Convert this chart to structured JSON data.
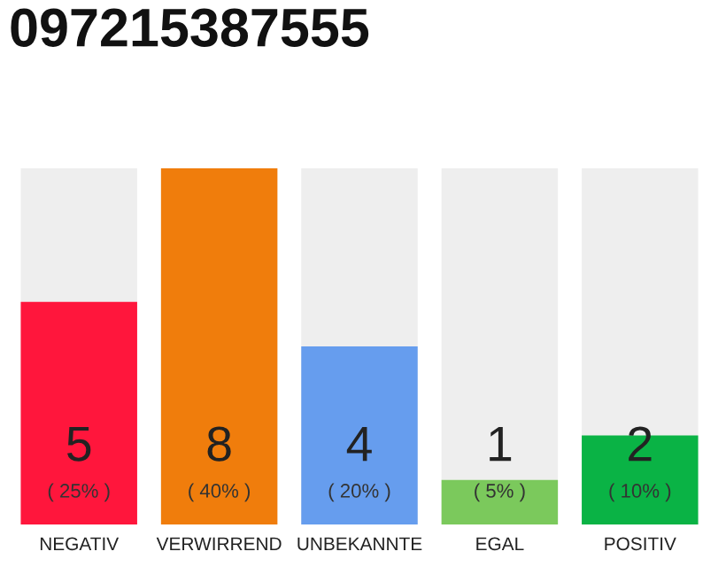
{
  "chart_data": {
    "type": "bar",
    "title": "097215387555",
    "categories": [
      "NEGATIV",
      "VERWIRREND",
      "UNBEKANNTE",
      "EGAL",
      "POSITIV"
    ],
    "values": [
      5,
      8,
      4,
      1,
      2
    ],
    "colors": [
      "#ff163c",
      "#f07d0c",
      "#669dee",
      "#7bc95c",
      "#0ab345"
    ],
    "ylim": [
      0,
      8
    ],
    "tick_labels": "x",
    "data_labels": true,
    "grid": false,
    "legend": false,
    "annotations": [
      "( 25% )",
      "( 40% )",
      "( 20% )",
      "( 5% )",
      "( 10% )"
    ]
  }
}
